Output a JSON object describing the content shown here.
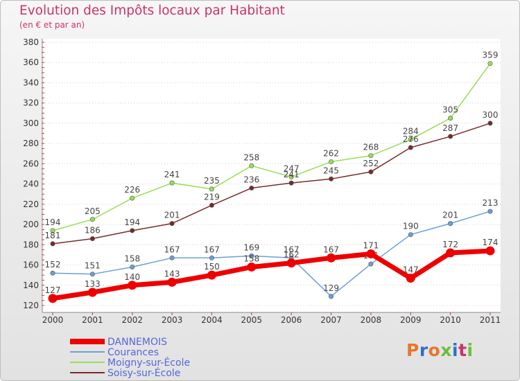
{
  "title": "Evolution des Impôts locaux par Habitant",
  "subtitle": "(en € et par an)",
  "logo": {
    "text": "Proxiti",
    "colors": [
      "#e8762b",
      "#2f6fcf",
      "#e8762b",
      "#6bbf3a",
      "#2f6fcf",
      "#cc3366",
      "#6bbf3a"
    ]
  },
  "chart_data": {
    "type": "line",
    "title": "Evolution des Impôts locaux par Habitant",
    "subtitle": "(en € et par an)",
    "xlabel": "",
    "ylabel": "",
    "categories": [
      "2000",
      "2001",
      "2002",
      "2003",
      "2004",
      "2005",
      "2006",
      "2007",
      "2008",
      "2009",
      "2010",
      "2011"
    ],
    "ylim": [
      120,
      380
    ],
    "yticks": [
      120,
      140,
      160,
      180,
      200,
      220,
      240,
      260,
      280,
      300,
      320,
      340,
      360,
      380
    ],
    "grid": "horizontal-dotted",
    "legend_position": "bottom-left",
    "series": [
      {
        "name": "DANNEMOIS",
        "color": "#ee0000",
        "emphasis": true,
        "values": [
          127,
          133,
          140,
          143,
          150,
          158,
          162,
          167,
          171,
          147,
          172,
          174
        ]
      },
      {
        "name": "Courances",
        "color": "#6a9fd8",
        "emphasis": false,
        "values": [
          152,
          151,
          158,
          167,
          167,
          169,
          167,
          129,
          161,
          190,
          201,
          213
        ]
      },
      {
        "name": "Moigny-sur-École",
        "color": "#99dd55",
        "emphasis": false,
        "values": [
          194,
          205,
          226,
          241,
          235,
          258,
          247,
          262,
          268,
          284,
          305,
          359
        ]
      },
      {
        "name": "Soisy-sur-École",
        "color": "#7a2a2a",
        "emphasis": false,
        "values": [
          181,
          186,
          194,
          201,
          219,
          236,
          241,
          245,
          252,
          276,
          287,
          300
        ]
      }
    ]
  }
}
